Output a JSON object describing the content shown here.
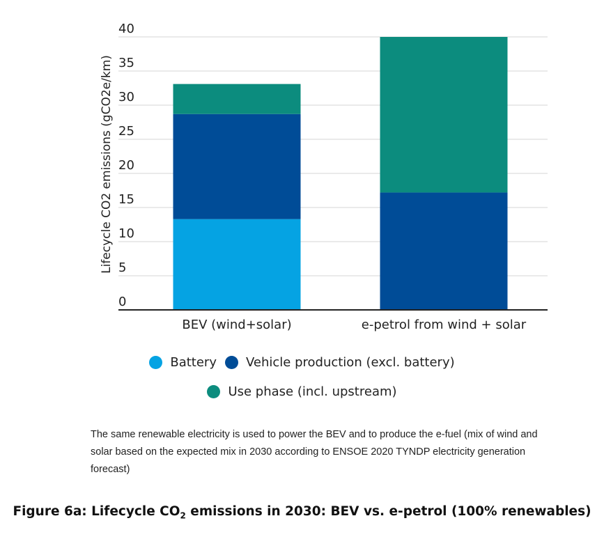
{
  "chart_data": {
    "type": "bar",
    "stacked": true,
    "categories": [
      "BEV (wind+solar)",
      "e-petrol from wind + solar"
    ],
    "series": [
      {
        "name": "Battery",
        "color": "#05a3e3",
        "values": [
          13.3,
          0
        ]
      },
      {
        "name": "Vehicle production (excl. battery)",
        "color": "#004c97",
        "values": [
          15.4,
          17.2
        ]
      },
      {
        "name": "Use phase (incl. upstream)",
        "color": "#0c8c7e",
        "values": [
          4.4,
          22.8
        ]
      }
    ],
    "ylabel": "Lifecycle CO2 emissions (gCO2e/km)",
    "ylim": [
      0,
      40
    ],
    "yticks": [
      0,
      5,
      10,
      15,
      20,
      25,
      30,
      35,
      40
    ],
    "grid": true,
    "legend_position": "bottom"
  },
  "footnote": "The same renewable electricity is used to power the BEV and to produce the e-fuel (mix of wind and solar based on the expected mix in 2030 according to ENSOE 2020 TYNDP electricity generation forecast)",
  "caption": {
    "before_sub": "Figure 6a: Lifecycle CO",
    "sub": "2",
    "after_sub": " emissions in 2030: BEV vs. e-petrol (100% renewables)"
  }
}
